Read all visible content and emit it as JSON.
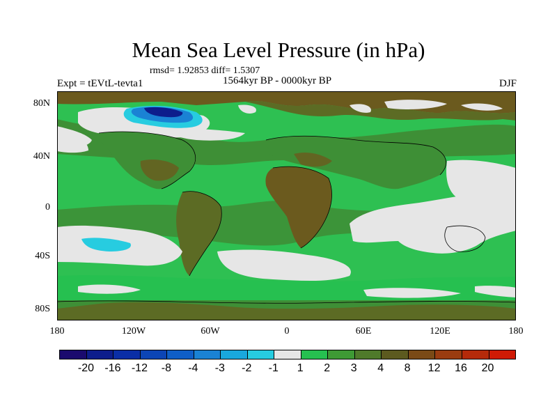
{
  "title": "Mean Sea Level Pressure (in hPa)",
  "stats": "rmsd= 1.92853 diff= 1.5307",
  "period": "1564kyr BP - 0000kyr BP",
  "experiment": "Expt = tEVtL-tevta1",
  "season": "DJF",
  "lat_labels": [
    "80N",
    "40N",
    "0",
    "40S",
    "80S"
  ],
  "lon_labels": [
    "180",
    "120W",
    "60W",
    "0",
    "60E",
    "120E",
    "180"
  ],
  "colorbar": {
    "colors": [
      "#1a0a6e",
      "#0d1d8c",
      "#0a2ea6",
      "#0c45b5",
      "#0f5ec7",
      "#1a82d4",
      "#19a8dd",
      "#27cce0",
      "#e6e6e6",
      "#26c050",
      "#3e9a35",
      "#4f7a2b",
      "#5c5a1f",
      "#7a4a16",
      "#9a3c10",
      "#b52a0a",
      "#d01a05"
    ],
    "labels": [
      "-20",
      "-16",
      "-12",
      "-8",
      "-4",
      "-3",
      "-2",
      "-1",
      "1",
      "2",
      "3",
      "4",
      "8",
      "12",
      "16",
      "20"
    ]
  },
  "map_colors": {
    "ocean_green": "#2ec052",
    "light_green": "#26c050",
    "dark_green": "#3e8f36",
    "olive": "#5c6b24",
    "brown": "#6b5a1e",
    "grey": "#e6e6e6",
    "cyan": "#27cce0",
    "blue": "#1a82d4",
    "dark_blue": "#0d1d8c"
  }
}
